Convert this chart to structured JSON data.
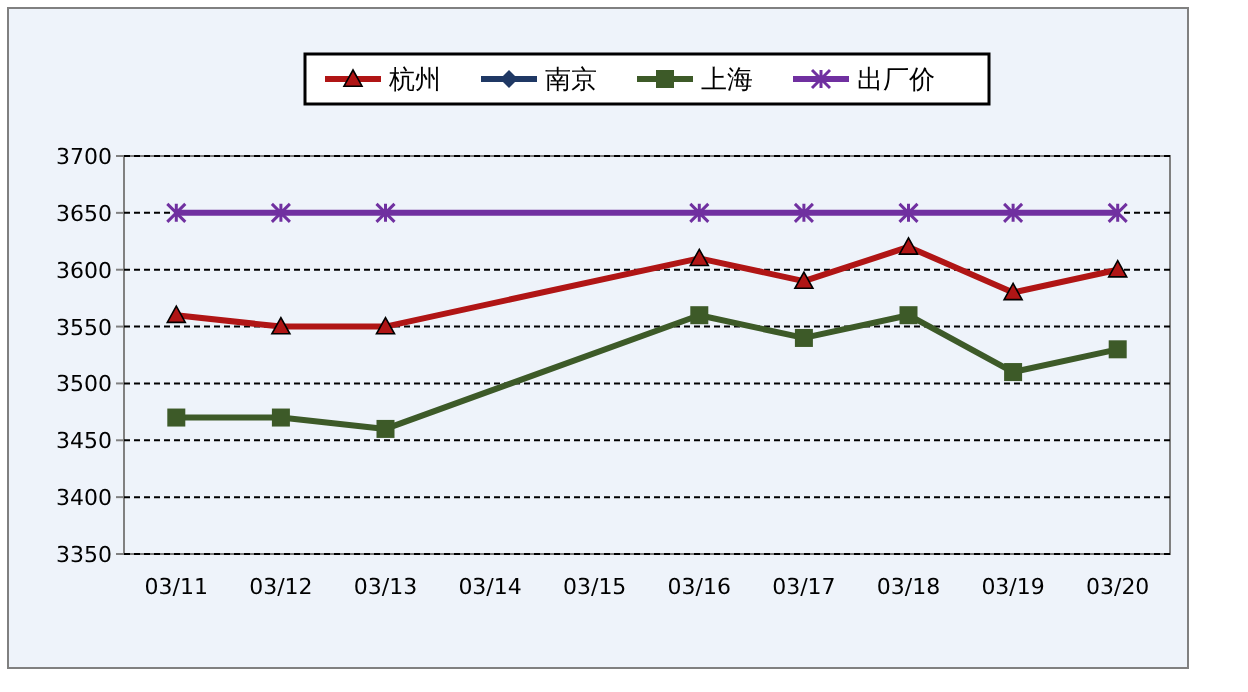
{
  "chart_data": {
    "type": "line",
    "categories": [
      "03/11",
      "03/12",
      "03/13",
      "03/14",
      "03/15",
      "03/16",
      "03/17",
      "03/18",
      "03/19",
      "03/20"
    ],
    "series": [
      {
        "name": "杭州",
        "color": "#b01515",
        "marker": "triangle",
        "values": [
          3560,
          3550,
          3550,
          null,
          null,
          3610,
          3590,
          3620,
          3580,
          3600
        ]
      },
      {
        "name": "南京",
        "color": "#1f3864",
        "marker": "diamond",
        "values": [
          null,
          null,
          null,
          null,
          null,
          null,
          null,
          null,
          null,
          null
        ]
      },
      {
        "name": "上海",
        "color": "#3d5a28",
        "marker": "square",
        "values": [
          3470,
          3470,
          3460,
          null,
          null,
          3560,
          3540,
          3560,
          3510,
          3530
        ]
      },
      {
        "name": "出厂价",
        "color": "#7030a0",
        "marker": "cross",
        "values": [
          3650,
          3650,
          3650,
          null,
          null,
          3650,
          3650,
          3650,
          3650,
          3650
        ]
      }
    ],
    "ylim": [
      3350,
      3700
    ],
    "yticks": [
      3350,
      3400,
      3450,
      3500,
      3550,
      3600,
      3650,
      3700
    ],
    "grid": "y",
    "legend": "top"
  }
}
